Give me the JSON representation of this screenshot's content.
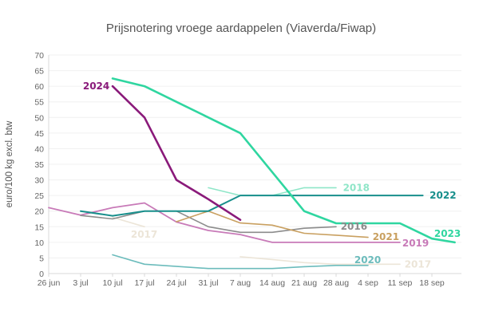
{
  "chart_data": {
    "type": "line",
    "title": "Prijsnotering vroege aardappelen (Viaverda/Fiwap)",
    "xlabel": "",
    "ylabel": "euro/100 kg excl. btw",
    "x_unit": "days since 26 jun",
    "xlim": [
      0,
      88
    ],
    "ylim": [
      0,
      70
    ],
    "yticks": [
      0,
      5,
      10,
      15,
      20,
      25,
      30,
      35,
      40,
      45,
      50,
      55,
      60,
      65,
      70
    ],
    "xticks": [
      {
        "value": 0,
        "label": "26 jun"
      },
      {
        "value": 7,
        "label": "3 jul"
      },
      {
        "value": 14,
        "label": "10 jul"
      },
      {
        "value": 21,
        "label": "17 jul"
      },
      {
        "value": 28,
        "label": "24 jul"
      },
      {
        "value": 35,
        "label": "31 jul"
      },
      {
        "value": 42,
        "label": "7 aug"
      },
      {
        "value": 49,
        "label": "14 aug"
      },
      {
        "value": 56,
        "label": "21 aug"
      },
      {
        "value": 63,
        "label": "28 aug"
      },
      {
        "value": 70,
        "label": "4 sep"
      },
      {
        "value": 77,
        "label": "11 sep"
      },
      {
        "value": 84,
        "label": "18 sep"
      }
    ],
    "grid": true,
    "series": [
      {
        "name": "2017",
        "color": "#ece5d8",
        "width": 1.6,
        "segments": [
          [
            [
              14,
              18
            ],
            [
              21,
              15
            ]
          ],
          [
            [
              42,
              5.4
            ],
            [
              49,
              4.5
            ],
            [
              56,
              3.5
            ],
            [
              63,
              3
            ],
            [
              77,
              3
            ]
          ]
        ],
        "label": {
          "text": "2017",
          "at": [
            18,
            12.5
          ]
        },
        "label2": {
          "text": "2017",
          "at": [
            78,
            3
          ]
        }
      },
      {
        "name": "2020",
        "color": "#6cbcbc",
        "width": 1.6,
        "segments": [
          [
            [
              14,
              6
            ],
            [
              21,
              3
            ],
            [
              35,
              1.6
            ],
            [
              49,
              1.6
            ],
            [
              56,
              2.2
            ],
            [
              63,
              2.6
            ],
            [
              70,
              2.6
            ]
          ]
        ],
        "label": {
          "text": "2020",
          "at": [
            67,
            4.3
          ]
        }
      },
      {
        "name": "2019",
        "color": "#c87ab8",
        "width": 1.8,
        "segments": [
          [
            [
              0,
              21.1
            ],
            [
              7,
              18.7
            ],
            [
              14,
              21.1
            ],
            [
              21,
              22.6
            ],
            [
              28,
              16.5
            ],
            [
              35,
              13.8
            ],
            [
              42,
              12.5
            ],
            [
              49,
              10
            ],
            [
              56,
              10
            ],
            [
              63,
              10
            ],
            [
              70,
              10
            ],
            [
              77,
              10
            ]
          ]
        ],
        "label": {
          "text": "2019",
          "at": [
            77.5,
            9.7
          ]
        }
      },
      {
        "name": "2016",
        "color": "#8c8c8c",
        "width": 1.6,
        "segments": [
          [
            [
              7,
              18.6
            ],
            [
              14,
              17.5
            ],
            [
              21,
              20
            ],
            [
              28,
              20
            ],
            [
              35,
              15
            ],
            [
              42,
              13.2
            ],
            [
              49,
              13.2
            ],
            [
              56,
              14.5
            ],
            [
              63,
              15
            ]
          ]
        ],
        "label": {
          "text": "2016",
          "at": [
            64,
            15.1
          ]
        }
      },
      {
        "name": "2021",
        "color": "#c9a060",
        "width": 1.6,
        "segments": [
          [
            [
              28,
              16.6
            ],
            [
              35,
              20
            ],
            [
              42,
              16.2
            ],
            [
              49,
              15.5
            ],
            [
              56,
              12.9
            ],
            [
              63,
              12.3
            ],
            [
              70,
              11.6
            ]
          ]
        ],
        "label": {
          "text": "2021",
          "at": [
            71,
            11.8
          ]
        }
      },
      {
        "name": "2018",
        "color": "#8fe6c8",
        "width": 1.6,
        "segments": [
          [
            [
              35,
              27.5
            ],
            [
              42,
              25
            ],
            [
              49,
              25
            ],
            [
              56,
              27.5
            ],
            [
              63,
              27.5
            ]
          ]
        ],
        "label": {
          "text": "2018",
          "at": [
            64.5,
            27.5
          ]
        }
      },
      {
        "name": "2022",
        "color": "#188f8c",
        "width": 2,
        "segments": [
          [
            [
              7,
              20
            ],
            [
              14,
              18.5
            ],
            [
              21,
              20
            ],
            [
              28,
              20
            ],
            [
              35,
              20
            ],
            [
              42,
              25
            ],
            [
              49,
              25
            ],
            [
              56,
              25
            ],
            [
              63,
              25
            ],
            [
              70,
              25
            ],
            [
              77,
              25
            ],
            [
              82,
              25
            ]
          ]
        ],
        "label": {
          "text": "2022",
          "at": [
            83.5,
            25.1
          ]
        }
      },
      {
        "name": "2024",
        "color": "#8a1a7a",
        "width": 2.6,
        "segments": [
          [
            [
              14,
              60
            ],
            [
              21,
              50
            ],
            [
              28,
              30
            ],
            [
              35,
              23.8
            ],
            [
              42,
              17.2
            ]
          ]
        ],
        "label": {
          "text": "2024",
          "at": [
            7.5,
            60
          ]
        }
      },
      {
        "name": "2023",
        "color": "#2fd6a0",
        "width": 2.6,
        "segments": [
          [
            [
              14,
              62.5
            ],
            [
              21,
              60
            ],
            [
              28,
              55
            ],
            [
              35,
              50
            ],
            [
              42,
              45
            ],
            [
              49,
              32.5
            ],
            [
              56,
              20
            ],
            [
              63,
              16.1
            ],
            [
              70,
              16.1
            ],
            [
              77,
              16.1
            ],
            [
              84,
              11.2
            ],
            [
              89,
              10
            ]
          ]
        ],
        "label": {
          "text": "2023",
          "at": [
            84.5,
            12.8
          ]
        }
      }
    ]
  }
}
